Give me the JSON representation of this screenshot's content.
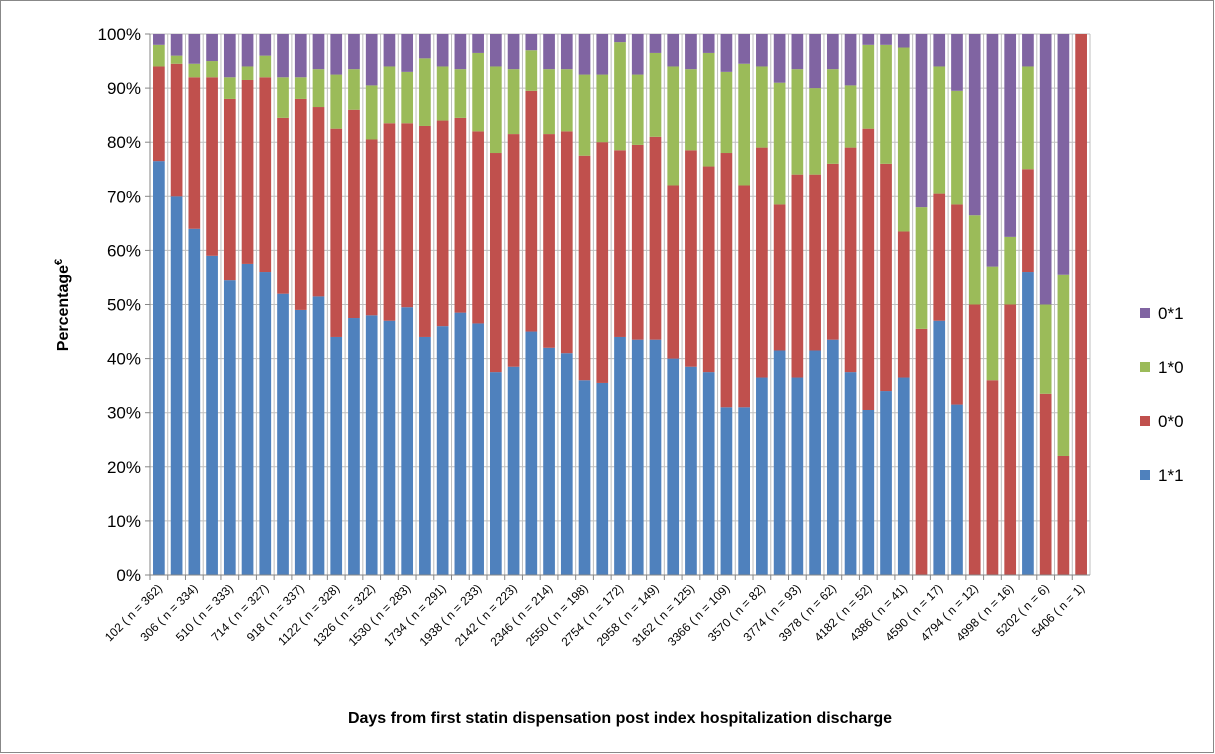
{
  "chart_data": {
    "type": "stacked_bar",
    "x_label": "Days from first statin dispensation post index hospitalization discharge",
    "y_label": "Percentage",
    "y_label_superscript": "€",
    "categories": [
      "102 ( n = 362)",
      null,
      "306 ( n = 334)",
      null,
      "510 ( n = 333)",
      null,
      "714 ( n = 327)",
      null,
      "918 ( n = 337)",
      null,
      "1122 ( n = 328)",
      null,
      "1326 ( n = 322)",
      null,
      "1530 ( n = 283)",
      null,
      "1734 ( n = 291)",
      null,
      "1938 ( n = 233)",
      null,
      "2142 ( n = 223)",
      null,
      "2346 ( n = 214)",
      null,
      "2550 ( n = 198)",
      null,
      "2754 ( n = 172)",
      null,
      "2958 ( n = 149)",
      null,
      "3162 ( n = 125)",
      null,
      "3366 ( n = 109)",
      null,
      "3570 ( n = 82)",
      null,
      "3774 ( n = 93)",
      null,
      "3978 ( n = 62)",
      null,
      "4182 ( n = 52)",
      null,
      "4386 ( n = 41)",
      null,
      "4590 ( n = 17)",
      null,
      "4794 ( n = 12)",
      null,
      "4998 ( n = 16)",
      null,
      "5202 ( n = 6)",
      null,
      "5406 ( n = 1)"
    ],
    "series": [
      {
        "name": "1*1",
        "color": "#4f81bd",
        "values": [
          76.5,
          70,
          64,
          59,
          54.5,
          57.5,
          56,
          52,
          49,
          51.5,
          44,
          47.5,
          48,
          47,
          49.5,
          44,
          46,
          48.5,
          46.5,
          37.5,
          38.5,
          45,
          42,
          41,
          36,
          35.5,
          44,
          43.5,
          43.5,
          40,
          38.5,
          37.5,
          31,
          31,
          36.5,
          41.5,
          36.5,
          41.5,
          43.5,
          37.5,
          30.5,
          34,
          36.5,
          0,
          47,
          31.5,
          0,
          0,
          0,
          56,
          0,
          0,
          0
        ]
      },
      {
        "name": "0*0",
        "color": "#c0504d",
        "values": [
          17.5,
          24.5,
          28,
          33,
          33.5,
          34,
          36,
          32.5,
          39,
          35,
          38.5,
          38.5,
          32.5,
          36.5,
          34,
          39,
          38,
          36,
          35.5,
          40.5,
          43,
          44.5,
          39.5,
          41,
          41.5,
          44.5,
          34.5,
          36,
          37.5,
          32,
          40,
          38,
          47,
          41,
          42.5,
          27,
          37.5,
          32.5,
          32.5,
          41.5,
          52,
          42,
          27,
          45.5,
          23.5,
          37,
          50,
          36,
          50,
          19,
          33.5,
          22,
          100
        ]
      },
      {
        "name": "1*0",
        "color": "#9bbb59",
        "values": [
          4,
          1.5,
          2.5,
          3,
          4,
          2.5,
          4,
          7.5,
          4,
          7,
          10,
          7.5,
          10,
          10.5,
          9.5,
          12.5,
          10,
          9,
          14.5,
          16,
          12,
          7.5,
          12,
          11.5,
          15,
          12.5,
          20,
          13,
          15.5,
          22,
          15,
          21,
          15,
          22.5,
          15,
          22.5,
          19.5,
          16,
          17.5,
          11.5,
          15.5,
          22,
          34,
          22.5,
          23.5,
          21,
          16.5,
          21,
          12.5,
          19,
          16.5,
          33.5,
          0
        ]
      },
      {
        "name": "0*1",
        "color": "#8064a2",
        "values": [
          2,
          4,
          5.5,
          5,
          8,
          6,
          4,
          8,
          8,
          6.5,
          7.5,
          6.5,
          9.5,
          6,
          7,
          4.5,
          6,
          6.5,
          3.5,
          6,
          6.5,
          3,
          6.5,
          6.5,
          7.5,
          7.5,
          1.5,
          7.5,
          3.5,
          6,
          6.5,
          3.5,
          7,
          5.5,
          6,
          9,
          6.5,
          10,
          6.5,
          9.5,
          2,
          2,
          2.5,
          32,
          6,
          10.5,
          33.5,
          43,
          37.5,
          6,
          50,
          44.5,
          0
        ]
      }
    ],
    "ylim": [
      0,
      100
    ],
    "yticks": [
      {
        "value": 0,
        "label": "0%"
      },
      {
        "value": 10,
        "label": "10%"
      },
      {
        "value": 20,
        "label": "20%"
      },
      {
        "value": 30,
        "label": "30%"
      },
      {
        "value": 40,
        "label": "40%"
      },
      {
        "value": 50,
        "label": "50%"
      },
      {
        "value": 60,
        "label": "60%"
      },
      {
        "value": 70,
        "label": "70%"
      },
      {
        "value": 80,
        "label": "80%"
      },
      {
        "value": 90,
        "label": "90%"
      },
      {
        "value": 100,
        "label": "100%"
      }
    ],
    "grid": true,
    "legend": "right"
  }
}
